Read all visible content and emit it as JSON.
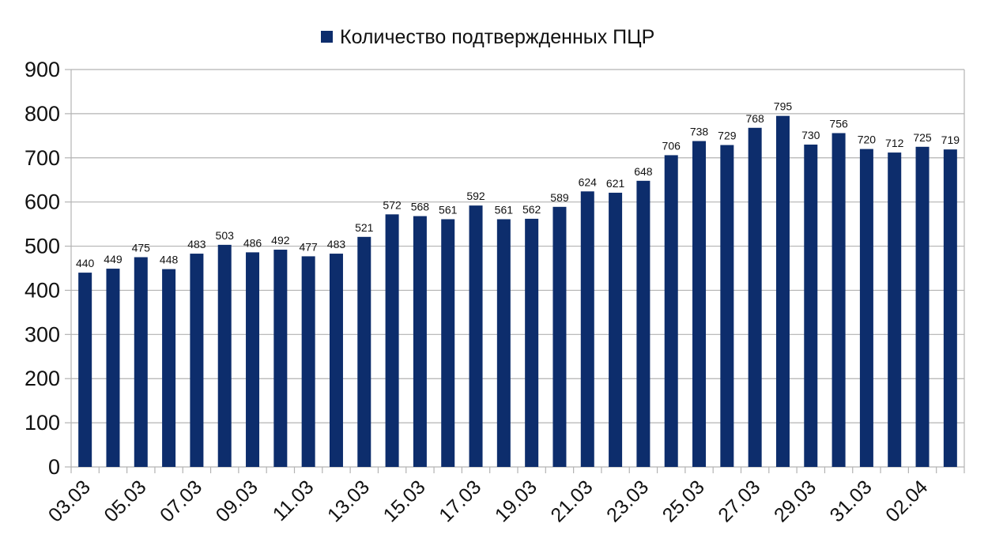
{
  "chart_data": {
    "type": "bar",
    "title": "",
    "xlabel": "",
    "ylabel": "",
    "ylim": [
      0,
      900
    ],
    "y_ticks": [
      0,
      100,
      200,
      300,
      400,
      500,
      600,
      700,
      800,
      900
    ],
    "grid": true,
    "legend_position": "top-center",
    "bar_color": "#0d2d6c",
    "grid_color": "#b3b3b3",
    "categories": [
      "03.03",
      "04.03",
      "05.03",
      "06.03",
      "07.03",
      "08.03",
      "09.03",
      "10.03",
      "11.03",
      "12.03",
      "13.03",
      "14.03",
      "15.03",
      "16.03",
      "17.03",
      "18.03",
      "19.03",
      "20.03",
      "21.03",
      "22.03",
      "23.03",
      "24.03",
      "25.03",
      "26.03",
      "27.03",
      "28.03",
      "29.03",
      "30.03",
      "31.03",
      "01.04",
      "02.04",
      "03.04"
    ],
    "x_tick_labels": [
      "03.03",
      "05.03",
      "07.03",
      "09.03",
      "11.03",
      "13.03",
      "15.03",
      "17.03",
      "19.03",
      "21.03",
      "23.03",
      "25.03",
      "27.03",
      "29.03",
      "31.03",
      "02.04"
    ],
    "series": [
      {
        "name": "Количество подтвержденных ПЦР",
        "values": [
          440,
          449,
          475,
          448,
          483,
          503,
          486,
          492,
          477,
          483,
          521,
          572,
          568,
          561,
          592,
          561,
          562,
          589,
          624,
          621,
          648,
          706,
          738,
          729,
          768,
          795,
          730,
          756,
          720,
          712,
          725,
          719
        ],
        "data_labels": [
          "440",
          "449",
          "475",
          "448",
          "483",
          "503",
          "486",
          "492",
          "477",
          "483",
          "521",
          "572",
          "568",
          "561",
          "592",
          "561",
          "562",
          "589",
          "624",
          "621",
          "648",
          "706",
          "738",
          "729",
          "768",
          "795",
          "730",
          "756",
          "720",
          "712",
          "725",
          "719"
        ]
      }
    ]
  }
}
